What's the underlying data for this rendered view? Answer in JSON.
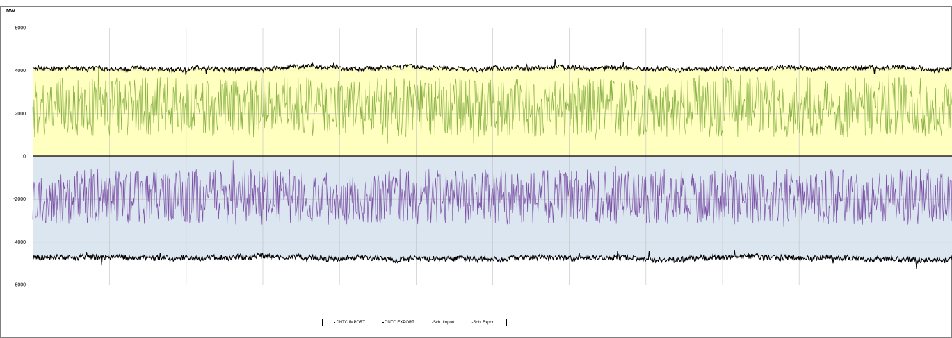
{
  "chart_data": {
    "type": "line",
    "title": "",
    "unit_label": "MW",
    "xlabel": "",
    "ylabel": "",
    "ylim": [
      -6000,
      6000
    ],
    "y_ticks": [
      6000,
      4000,
      2000,
      0,
      -2000,
      -4000,
      -6000
    ],
    "x_range": [
      0,
      1000
    ],
    "vertical_gridline_count": 12,
    "grid": true,
    "legend_position": "bottom-center",
    "band_colors": {
      "positive": "#ffffc0",
      "negative": "#dce6f0"
    },
    "series": [
      {
        "name": "DNTC IMPORT",
        "color": "#000000",
        "kind": "area-bound",
        "level": 4100,
        "noise": 220,
        "value_range": [
          3200,
          4800
        ]
      },
      {
        "name": "DNTC EXPORT",
        "color": "#000000",
        "kind": "area-bound",
        "level": -4750,
        "noise": 250,
        "value_range": [
          -5300,
          -3800
        ]
      },
      {
        "name": "-Sch. Import",
        "color": "#8cb34a",
        "kind": "line",
        "level": 2300,
        "noise": 1400,
        "value_range": [
          600,
          5000
        ]
      },
      {
        "name": "-Sch. Export",
        "color": "#7b52a6",
        "kind": "line",
        "level": -1900,
        "noise": 1300,
        "value_range": [
          -5300,
          -200
        ]
      }
    ],
    "legend": [
      "DNTC IMPORT",
      "DNTC EXPORT",
      "-Sch. Import",
      "-Sch. Export"
    ]
  }
}
